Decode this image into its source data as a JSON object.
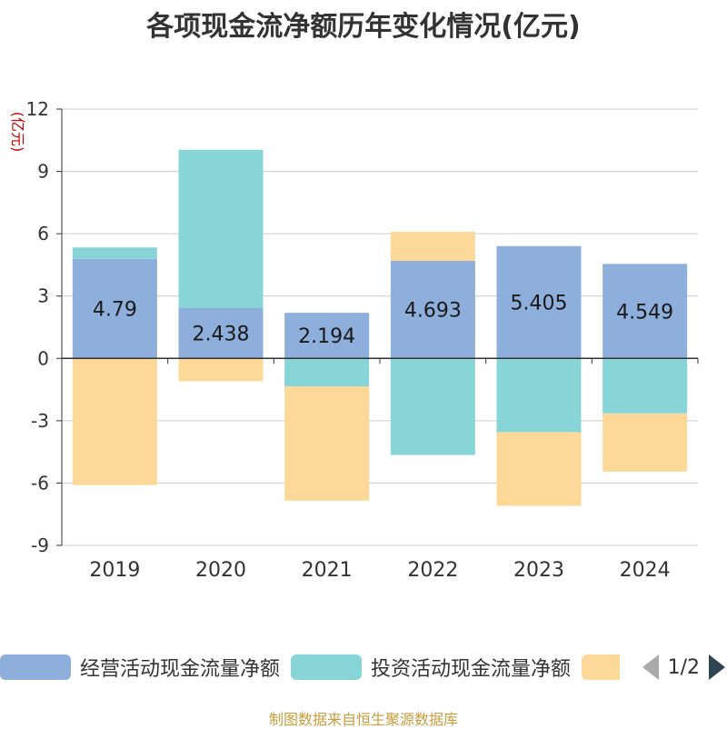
{
  "title": "各项现金流净额历年变化情况(亿元)",
  "source": "制图数据来自恒生聚源数据库",
  "chart_data": {
    "type": "bar",
    "stacked": true,
    "categories": [
      "2019",
      "2020",
      "2021",
      "2022",
      "2023",
      "2024"
    ],
    "ylabel": "(亿元)",
    "ylim": [
      -9,
      12
    ],
    "yticks": [
      -9,
      -6,
      -3,
      0,
      3,
      6,
      9,
      12
    ],
    "grid": true,
    "legend_position": "bottom",
    "series": [
      {
        "name": "经营活动现金流量净额",
        "color": "#8eaedc",
        "values": [
          4.79,
          2.438,
          2.194,
          4.693,
          5.405,
          4.549
        ],
        "labels": [
          "4.79",
          "2.438",
          "2.194",
          "4.693",
          "5.405",
          "4.549"
        ]
      },
      {
        "name": "投资活动现金流量净额",
        "color": "#88d5d8",
        "values": [
          0.55,
          7.6,
          -1.35,
          -4.65,
          -3.55,
          -2.65
        ]
      },
      {
        "name": "",
        "color": "#fdd999",
        "values": [
          -6.1,
          -1.1,
          -5.5,
          1.4,
          -3.55,
          -2.8
        ]
      }
    ]
  },
  "legend": {
    "items": [
      {
        "label": "经营活动现金流量净额",
        "color": "#8eaedc"
      },
      {
        "label": "投资活动现金流量净额",
        "color": "#88d5d8"
      },
      {
        "label": "",
        "color": "#fdd999"
      }
    ],
    "page": "1/2"
  }
}
